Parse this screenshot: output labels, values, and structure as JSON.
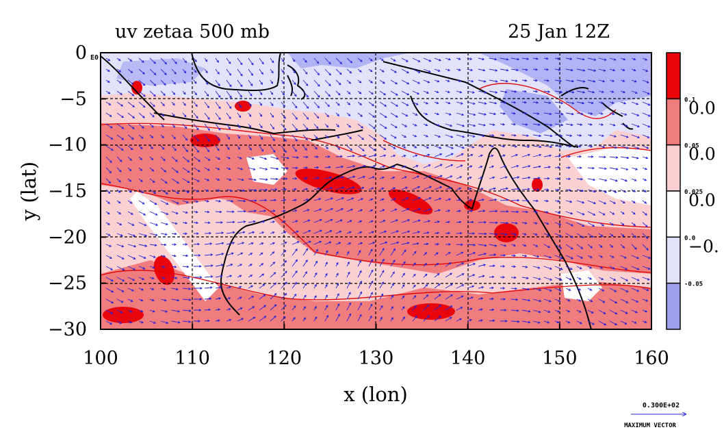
{
  "map": {
    "title_left": "uv zetaa 500 mb",
    "title_right": "25 Jan 12Z",
    "xlabel": "x (lon)",
    "ylabel": "y (lat)",
    "lon_range": [
      100,
      160
    ],
    "lat_range": [
      -30,
      0
    ],
    "x_ticks": [
      "100",
      "110",
      "120",
      "130",
      "140",
      "150",
      "160"
    ],
    "y_ticks": [
      "0",
      "−5",
      "−10",
      "−15",
      "−20",
      "−25",
      "−30"
    ],
    "corner_label": "E0"
  },
  "colorbar": {
    "levels": [
      {
        "color": "#e8060c",
        "label": "0.1"
      },
      {
        "color": "#f07c7e",
        "label": "0.05"
      },
      {
        "color": "#fbd0d0",
        "label": "0.025"
      },
      {
        "color": "#ffffff",
        "label": "0.0"
      },
      {
        "color": "#e2e2fb",
        "label": "-0.05"
      },
      {
        "color": "#9ea0f2",
        "label": ""
      }
    ],
    "big_labels": [
      "0.0",
      "0.0",
      "0.0",
      "−0."
    ]
  },
  "vector_key": {
    "value": "0.300E+02",
    "label": "MAXIMUM VECTOR"
  },
  "colors": {
    "vector": "#2323d6",
    "coast": "#000000",
    "contour": "#e00000"
  }
}
